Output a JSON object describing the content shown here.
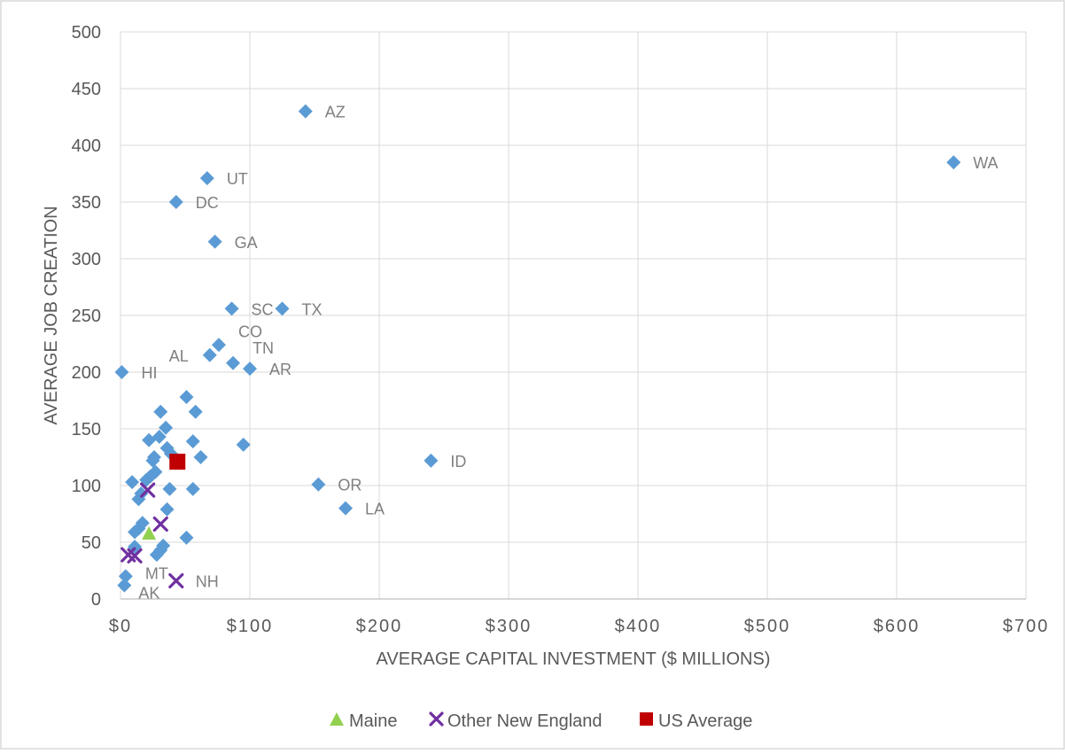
{
  "chart_data": {
    "type": "scatter",
    "title": "",
    "xlabel": "AVERAGE CAPITAL INVESTMENT ($ MILLIONS)",
    "ylabel": "AVERAGE JOB CREATION",
    "xlim": [
      0,
      700
    ],
    "ylim": [
      0,
      500
    ],
    "x_ticks": [
      0,
      100,
      200,
      300,
      400,
      500,
      600,
      700
    ],
    "x_tick_labels": [
      "$0",
      "$100",
      "$200",
      "$300",
      "$400",
      "$500",
      "$600",
      "$700"
    ],
    "y_ticks": [
      0,
      50,
      100,
      150,
      200,
      250,
      300,
      350,
      400,
      450,
      500
    ],
    "y_tick_labels": [
      "0",
      "50",
      "100",
      "150",
      "200",
      "250",
      "300",
      "350",
      "400",
      "450",
      "500"
    ],
    "grid": "vertical and horizontal major gridlines",
    "legend_position": "bottom",
    "series": [
      {
        "name": "",
        "marker": "diamond",
        "color": "#5B9BD5",
        "points": [
          {
            "x": 143,
            "y": 430,
            "label": "AZ"
          },
          {
            "x": 644,
            "y": 385,
            "label": "WA"
          },
          {
            "x": 67,
            "y": 371,
            "label": "UT"
          },
          {
            "x": 43,
            "y": 350,
            "label": "DC"
          },
          {
            "x": 73,
            "y": 315,
            "label": "GA"
          },
          {
            "x": 86,
            "y": 256,
            "label": "SC"
          },
          {
            "x": 125,
            "y": 256,
            "label": "TX"
          },
          {
            "x": 76,
            "y": 224,
            "label": "CO"
          },
          {
            "x": 69,
            "y": 215,
            "label": "AL"
          },
          {
            "x": 87,
            "y": 208,
            "label": "TN"
          },
          {
            "x": 100,
            "y": 203,
            "label": "AR"
          },
          {
            "x": 1,
            "y": 200,
            "label": "HI"
          },
          {
            "x": 240,
            "y": 122,
            "label": "ID"
          },
          {
            "x": 153,
            "y": 101,
            "label": "OR"
          },
          {
            "x": 174,
            "y": 80,
            "label": "LA"
          },
          {
            "x": 4,
            "y": 20,
            "label": "MT"
          },
          {
            "x": 3,
            "y": 12,
            "label": "AK"
          },
          {
            "x": 51,
            "y": 178
          },
          {
            "x": 31,
            "y": 165
          },
          {
            "x": 58,
            "y": 165
          },
          {
            "x": 35,
            "y": 151
          },
          {
            "x": 30,
            "y": 143
          },
          {
            "x": 22,
            "y": 140
          },
          {
            "x": 56,
            "y": 139
          },
          {
            "x": 95,
            "y": 136
          },
          {
            "x": 36,
            "y": 133
          },
          {
            "x": 39,
            "y": 128
          },
          {
            "x": 26,
            "y": 125
          },
          {
            "x": 62,
            "y": 125
          },
          {
            "x": 25,
            "y": 122
          },
          {
            "x": 27,
            "y": 112
          },
          {
            "x": 23,
            "y": 108
          },
          {
            "x": 20,
            "y": 105
          },
          {
            "x": 9,
            "y": 103
          },
          {
            "x": 38,
            "y": 97
          },
          {
            "x": 56,
            "y": 97
          },
          {
            "x": 16,
            "y": 93
          },
          {
            "x": 14,
            "y": 88
          },
          {
            "x": 36,
            "y": 79
          },
          {
            "x": 17,
            "y": 67
          },
          {
            "x": 14,
            "y": 62
          },
          {
            "x": 11,
            "y": 59
          },
          {
            "x": 51,
            "y": 54
          },
          {
            "x": 33,
            "y": 47
          },
          {
            "x": 11,
            "y": 46
          },
          {
            "x": 31,
            "y": 43
          },
          {
            "x": 28,
            "y": 39
          }
        ]
      },
      {
        "name": "Maine",
        "marker": "triangle",
        "color": "#92D050",
        "points": [
          {
            "x": 22,
            "y": 57
          }
        ]
      },
      {
        "name": "Other New England",
        "marker": "x",
        "color": "#7030A0",
        "points": [
          {
            "x": 21,
            "y": 96
          },
          {
            "x": 31,
            "y": 66
          },
          {
            "x": 6,
            "y": 39
          },
          {
            "x": 11,
            "y": 38
          },
          {
            "x": 43,
            "y": 16,
            "label": "NH"
          }
        ]
      },
      {
        "name": "US Average",
        "marker": "square",
        "color": "#C00000",
        "points": [
          {
            "x": 44,
            "y": 121
          }
        ]
      }
    ]
  }
}
